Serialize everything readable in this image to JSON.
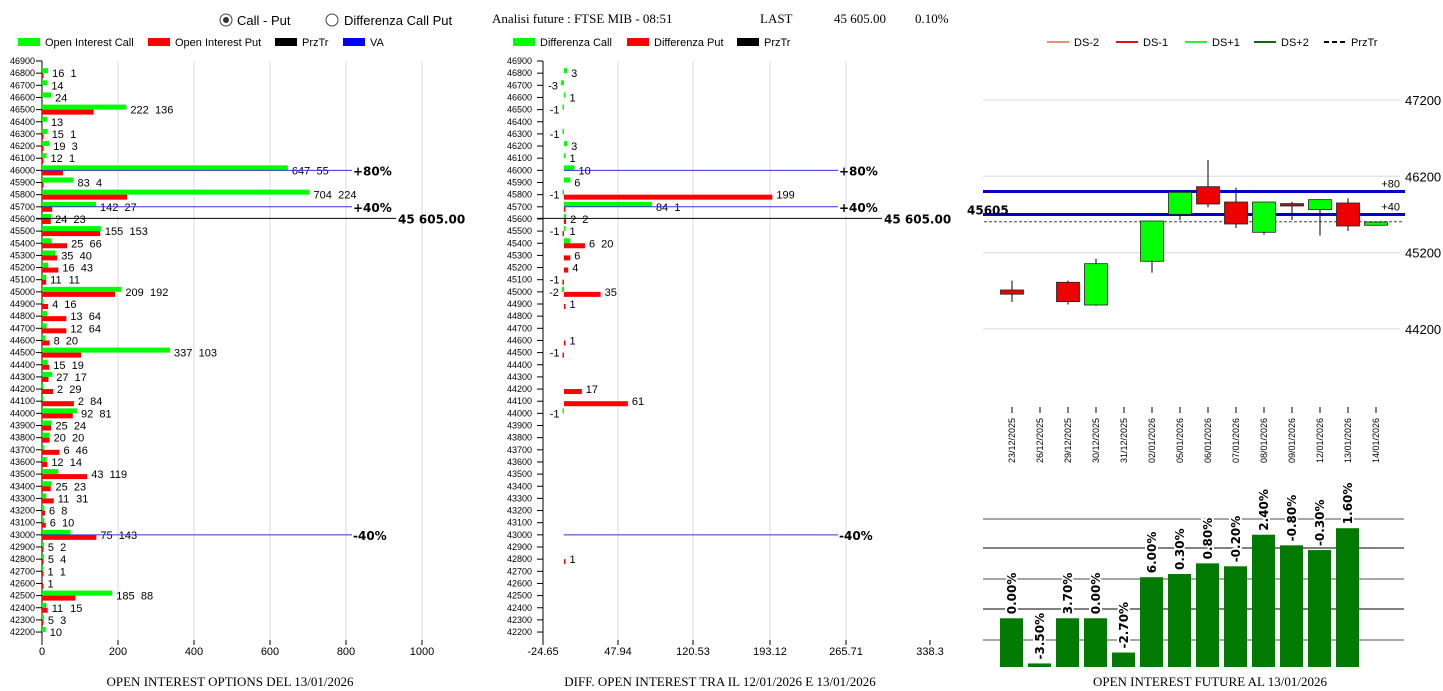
{
  "header": {
    "radio_call_put": "Call - Put",
    "radio_diff": "Differenza Call Put",
    "selected": "Call - Put",
    "title": "Analisi future : FTSE MIB - 08:51",
    "last_label": "LAST",
    "last_value": "45 605.00",
    "change": "0.10%"
  },
  "colors": {
    "call": "#00ff00",
    "put": "#ff0000",
    "przTr": "#000000",
    "va": "#0000ff",
    "oi_bar": "#007a00"
  },
  "chart_data": [
    {
      "type": "bar",
      "orientation": "horizontal",
      "title": "OPEN INTEREST OPTIONS DEL 13/01/2026",
      "legend": [
        "Open Interest Call",
        "Open Interest Put",
        "PrzTr",
        "VA"
      ],
      "xlim": [
        0,
        1000
      ],
      "xticks": [
        "0",
        "200",
        "400",
        "600",
        "800",
        "1000"
      ],
      "levels": [
        46900,
        46800,
        46700,
        46600,
        46500,
        46400,
        46300,
        46200,
        46100,
        46000,
        45900,
        45800,
        45700,
        45600,
        45500,
        45400,
        45300,
        45200,
        45100,
        45000,
        44900,
        44800,
        44700,
        44600,
        44500,
        44400,
        44300,
        44200,
        44100,
        44000,
        43900,
        43800,
        43700,
        43600,
        43500,
        43400,
        43300,
        43200,
        43100,
        43000,
        42900,
        42800,
        42700,
        42600,
        42500,
        42400,
        42300,
        42200
      ],
      "series": [
        {
          "name": "Open Interest Call",
          "values": [
            null,
            16,
            14,
            24,
            222,
            13,
            15,
            19,
            12,
            647,
            83,
            704,
            142,
            24,
            155,
            25,
            35,
            16,
            11,
            209,
            4,
            13,
            12,
            8,
            337,
            15,
            27,
            2,
            2,
            92,
            25,
            20,
            6,
            12,
            43,
            25,
            11,
            6,
            6,
            75,
            5,
            5,
            1,
            null,
            185,
            11,
            5,
            10
          ]
        },
        {
          "name": "Open Interest Put",
          "values": [
            null,
            1,
            null,
            null,
            136,
            null,
            1,
            3,
            1,
            55,
            4,
            224,
            27,
            23,
            153,
            66,
            40,
            43,
            11,
            192,
            16,
            64,
            64,
            20,
            103,
            19,
            17,
            29,
            84,
            81,
            24,
            20,
            46,
            14,
            119,
            23,
            31,
            8,
            10,
            143,
            2,
            4,
            1,
            1,
            88,
            15,
            3,
            null
          ]
        }
      ],
      "va_lines": [
        {
          "level": 46000,
          "label": "+80%"
        },
        {
          "level": 45700,
          "label": "+40%"
        },
        {
          "level": 43000,
          "label": "-40%"
        }
      ],
      "przTr": {
        "level": 45605,
        "label": "45 605.00"
      }
    },
    {
      "type": "bar",
      "orientation": "horizontal",
      "title": "DIFF. OPEN INTEREST TRA IL 12/01/2026 E 13/01/2026",
      "legend": [
        "Differenza Call",
        "Differenza Put",
        "PrzTr"
      ],
      "xlim": [
        -24.65,
        338.3
      ],
      "xticks": [
        "-24.65",
        "47.94",
        "120.53",
        "193.12",
        "265.71",
        "338.3"
      ],
      "series": [
        {
          "name": "Differenza Call",
          "values": [
            null,
            3,
            -3,
            1,
            -1,
            null,
            -1,
            3,
            1,
            10,
            6,
            -1,
            84,
            2,
            1,
            6,
            null,
            null,
            null,
            -2,
            null,
            null,
            null,
            null,
            null,
            null,
            null,
            null,
            null,
            -1,
            null,
            null,
            null,
            null,
            null,
            null,
            null,
            null,
            null,
            null,
            null,
            null,
            null,
            null,
            null,
            null,
            null,
            null
          ]
        },
        {
          "name": "Differenza Put",
          "values": [
            null,
            null,
            null,
            null,
            null,
            null,
            null,
            null,
            null,
            null,
            null,
            199,
            1,
            2,
            -1,
            20,
            6,
            4,
            -1,
            35,
            1,
            null,
            null,
            1,
            -1,
            null,
            null,
            17,
            61,
            null,
            null,
            null,
            null,
            null,
            null,
            null,
            null,
            null,
            null,
            null,
            null,
            1,
            null,
            null,
            null,
            null,
            null,
            null
          ]
        }
      ],
      "va_lines": [
        {
          "level": 46000,
          "label": "+80%"
        },
        {
          "level": 45700,
          "label": "+40%"
        },
        {
          "level": 43000,
          "label": "-40%"
        }
      ],
      "przTr": {
        "level": 45605,
        "label": "45 605.00"
      }
    },
    {
      "type": "candlestick",
      "legend": [
        "DS-2",
        "DS-1",
        "DS+1",
        "DS+2",
        "PrzTr"
      ],
      "ylim": [
        44200,
        47200
      ],
      "yticks": [
        "47200",
        "46200",
        "45200",
        "44200"
      ],
      "dates": [
        "23/12/2025",
        "26/12/2025",
        "29/12/2025",
        "30/12/2025",
        "31/12/2025",
        "02/01/2026",
        "05/01/2026",
        "06/01/2026",
        "07/01/2026",
        "08/01/2026",
        "09/01/2026",
        "12/01/2026",
        "13/01/2026",
        "14/01/2026"
      ],
      "ohlc": [
        [
          44710,
          44832,
          44553,
          44655
        ],
        null,
        [
          44811,
          44832,
          44520,
          44557
        ],
        [
          44513,
          45118,
          44500,
          45055
        ],
        null,
        [
          45086,
          45614,
          44937,
          45614
        ],
        [
          45702,
          45990,
          45627,
          45990
        ],
        [
          46064,
          46414,
          45794,
          45837
        ],
        [
          45863,
          46051,
          45522,
          45575
        ],
        [
          45466,
          45863,
          45435,
          45863
        ],
        [
          45842,
          45867,
          45627,
          45811
        ],
        [
          45763,
          45900,
          45422,
          45894
        ],
        [
          45850,
          45912,
          45483,
          45549
        ],
        [
          45558,
          45607,
          45558,
          45601
        ]
      ],
      "levels": [
        {
          "value": 46000,
          "label": "+80"
        },
        {
          "value": 45700,
          "label": "+40"
        }
      ],
      "przTr": {
        "value": 45605,
        "label": "45605"
      }
    },
    {
      "type": "bar",
      "title": "OPEN INTEREST FUTURE AL 13/01/2026",
      "categories": [
        "23/12/2025",
        "26/12/2025",
        "29/12/2025",
        "30/12/2025",
        "31/12/2025",
        "02/01/2026",
        "05/01/2026",
        "06/01/2026",
        "07/01/2026",
        "08/01/2026",
        "09/01/2026",
        "12/01/2026",
        "13/01/2026"
      ],
      "values": [
        1.65,
        0.12,
        1.65,
        1.65,
        0.49,
        3.04,
        3.15,
        3.51,
        3.41,
        4.48,
        4.12,
        3.96,
        4.7
      ],
      "labels": [
        "0.00%",
        "-3.50%",
        "3.70%",
        "0.00%",
        "-2.70%",
        "6.00%",
        "0.30%",
        "0.80%",
        "-0.20%",
        "2.40%",
        "-0.80%",
        "-0.30%",
        "1.60%"
      ],
      "ylim": [
        0,
        5
      ]
    }
  ]
}
